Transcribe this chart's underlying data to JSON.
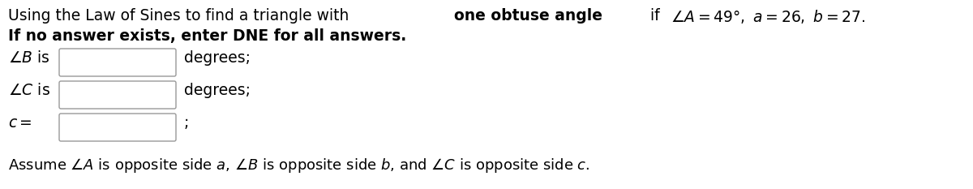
{
  "bg_color": "#ffffff",
  "text_color": "#000000",
  "box_edge_color": "#999999",
  "box_fill_color": "#ffffff",
  "font_size": 13.5,
  "font_size_footnote": 13.0,
  "line1_parts": [
    {
      "text": "Using the Law of Sines to find a triangle with ",
      "bold": false
    },
    {
      "text": "one obtuse angle",
      "bold": true
    },
    {
      "text": " if ",
      "bold": false
    },
    {
      "text": "∠A = 49°, a = 26, b = 27.",
      "bold": false,
      "math": true
    }
  ],
  "line2": "If no answer exists, enter DNE for all answers.",
  "rows": [
    {
      "label": "∠B is",
      "suffix": "degrees;"
    },
    {
      "label": "∠C is",
      "suffix": "degrees;"
    },
    {
      "label": "c =",
      "suffix": ";"
    }
  ],
  "footnote": "Assume ∠A is opposite side a, ∠B is opposite side b, and ∠C is opposite side c."
}
